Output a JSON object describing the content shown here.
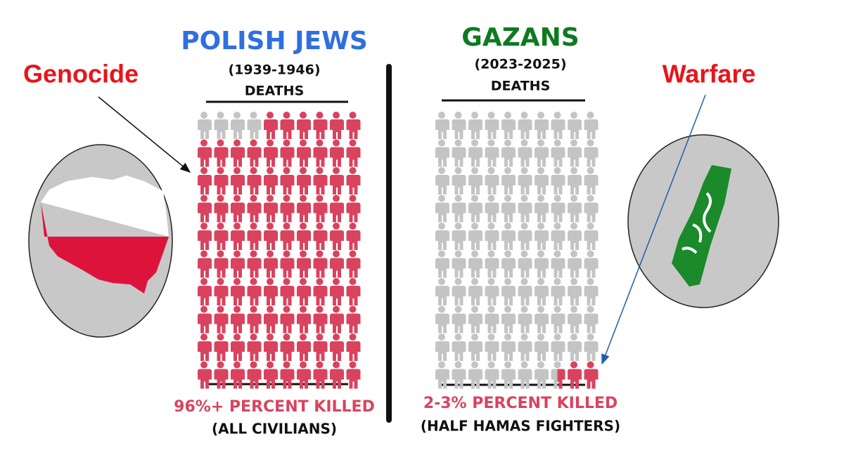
{
  "labels": {
    "left": "Genocide",
    "right": "Warfare"
  },
  "panels": [
    {
      "title": "POLISH JEWS",
      "period": "(1939-1946)",
      "heading": "DEATHS",
      "result": "96%+ PERCENT KILLED",
      "note": "(ALL CIVILIANS)",
      "icons_total": 100,
      "icons_highlighted": 96
    },
    {
      "title": "GAZANS",
      "period": "(2023-2025)",
      "heading": "DEATHS",
      "result": "2-3% PERCENT KILLED",
      "note": "(HALF HAMAS FIGHTERS)",
      "icons_total": 100,
      "icons_highlighted": 2.5
    }
  ]
}
